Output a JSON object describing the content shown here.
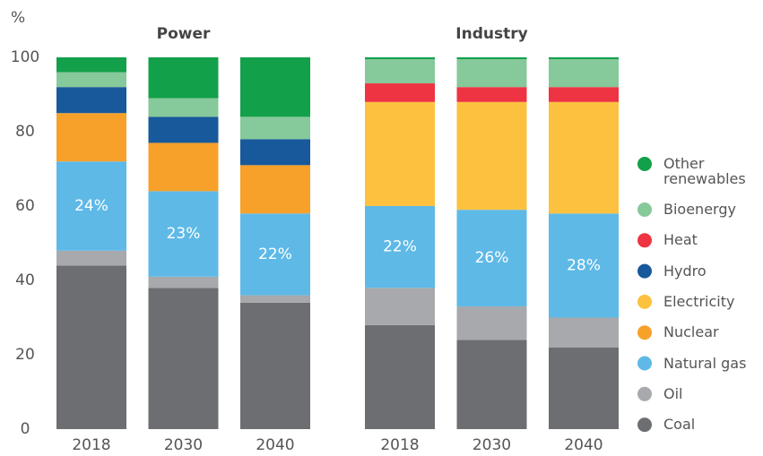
{
  "chart_data": {
    "type": "bar",
    "stacked": true,
    "ylabel": "%",
    "ylim": [
      0,
      100
    ],
    "yticks": [
      0,
      20,
      40,
      60,
      80,
      100
    ],
    "legend": "right",
    "groups": [
      {
        "title": "Power",
        "categories": [
          "2018",
          "2030",
          "2040"
        ]
      },
      {
        "title": "Industry",
        "categories": [
          "2018",
          "2030",
          "2040"
        ]
      }
    ],
    "series": [
      {
        "name": "Coal",
        "color": "#6d6e71",
        "values": [
          [
            44,
            38,
            34
          ],
          [
            28,
            24,
            22
          ]
        ]
      },
      {
        "name": "Oil",
        "color": "#a7a9ac",
        "values": [
          [
            4,
            3,
            2
          ],
          [
            10,
            9,
            8
          ]
        ]
      },
      {
        "name": "Natural gas",
        "color": "#5eb9e7",
        "values": [
          [
            24,
            23,
            22
          ],
          [
            22,
            26,
            28
          ]
        ],
        "value_labels": [
          [
            "24%",
            "23%",
            "22%"
          ],
          [
            "22%",
            "26%",
            "28%"
          ]
        ]
      },
      {
        "name": "Nuclear",
        "color": "#f7a12b",
        "values": [
          [
            13,
            13,
            13
          ],
          [
            0,
            0,
            0
          ]
        ]
      },
      {
        "name": "Electricity",
        "color": "#fcc23f",
        "values": [
          [
            0,
            0,
            0
          ],
          [
            28,
            29,
            30
          ]
        ]
      },
      {
        "name": "Hydro",
        "color": "#17599a",
        "values": [
          [
            7,
            7,
            7
          ],
          [
            0,
            0,
            0
          ]
        ]
      },
      {
        "name": "Heat",
        "color": "#ee3342",
        "values": [
          [
            0,
            0,
            0
          ],
          [
            5,
            4,
            4
          ]
        ]
      },
      {
        "name": "Bioenergy",
        "color": "#86c99a",
        "values": [
          [
            4,
            5,
            6
          ],
          [
            6.5,
            7.5,
            7.5
          ]
        ]
      },
      {
        "name": "Other renewables",
        "color": "#13a04a",
        "values": [
          [
            4,
            11,
            16
          ],
          [
            0.5,
            0.5,
            0.5
          ]
        ]
      }
    ]
  }
}
